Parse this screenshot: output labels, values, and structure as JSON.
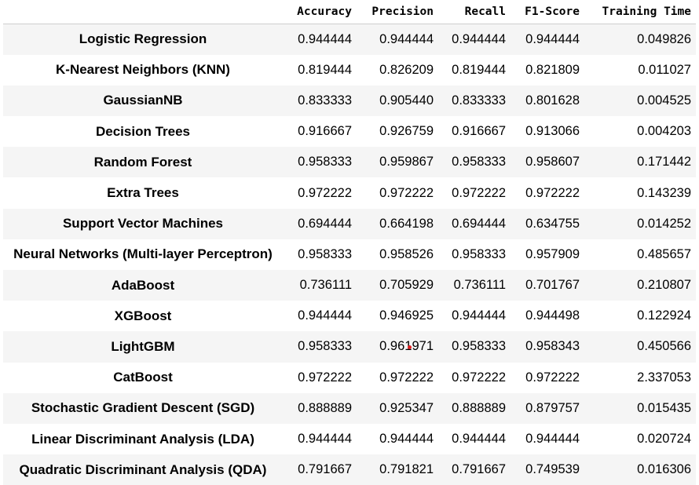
{
  "table": {
    "headers": [
      "",
      "Accuracy",
      "Precision",
      "Recall",
      "F1-Score",
      "Training Time"
    ],
    "rows": [
      {
        "model": "Logistic Regression",
        "accuracy": "0.944444",
        "precision": "0.944444",
        "recall": "0.944444",
        "f1": "0.944444",
        "time": "0.049826"
      },
      {
        "model": "K-Nearest Neighbors (KNN)",
        "accuracy": "0.819444",
        "precision": "0.826209",
        "recall": "0.819444",
        "f1": "0.821809",
        "time": "0.011027"
      },
      {
        "model": "GaussianNB",
        "accuracy": "0.833333",
        "precision": "0.905440",
        "recall": "0.833333",
        "f1": "0.801628",
        "time": "0.004525"
      },
      {
        "model": "Decision Trees",
        "accuracy": "0.916667",
        "precision": "0.926759",
        "recall": "0.916667",
        "f1": "0.913066",
        "time": "0.004203"
      },
      {
        "model": "Random Forest",
        "accuracy": "0.958333",
        "precision": "0.959867",
        "recall": "0.958333",
        "f1": "0.958607",
        "time": "0.171442"
      },
      {
        "model": "Extra Trees",
        "accuracy": "0.972222",
        "precision": "0.972222",
        "recall": "0.972222",
        "f1": "0.972222",
        "time": "0.143239"
      },
      {
        "model": "Support Vector Machines",
        "accuracy": "0.694444",
        "precision": "0.664198",
        "recall": "0.694444",
        "f1": "0.634755",
        "time": "0.014252"
      },
      {
        "model": "Neural Networks (Multi-layer Perceptron)",
        "accuracy": "0.958333",
        "precision": "0.958526",
        "recall": "0.958333",
        "f1": "0.957909",
        "time": "0.485657"
      },
      {
        "model": "AdaBoost",
        "accuracy": "0.736111",
        "precision": "0.705929",
        "recall": "0.736111",
        "f1": "0.701767",
        "time": "0.210807"
      },
      {
        "model": "XGBoost",
        "accuracy": "0.944444",
        "precision": "0.946925",
        "recall": "0.944444",
        "f1": "0.944498",
        "time": "0.122924"
      },
      {
        "model": "LightGBM",
        "accuracy": "0.958333",
        "precision": "0.961971",
        "recall": "0.958333",
        "f1": "0.958343",
        "time": "0.450566"
      },
      {
        "model": "CatBoost",
        "accuracy": "0.972222",
        "precision": "0.972222",
        "recall": "0.972222",
        "f1": "0.972222",
        "time": "2.337053"
      },
      {
        "model": "Stochastic Gradient Descent (SGD)",
        "accuracy": "0.888889",
        "precision": "0.925347",
        "recall": "0.888889",
        "f1": "0.879757",
        "time": "0.015435"
      },
      {
        "model": "Linear Discriminant Analysis (LDA)",
        "accuracy": "0.944444",
        "precision": "0.944444",
        "recall": "0.944444",
        "f1": "0.944444",
        "time": "0.020724"
      },
      {
        "model": "Quadratic Discriminant Analysis (QDA)",
        "accuracy": "0.791667",
        "precision": "0.791821",
        "recall": "0.791667",
        "f1": "0.749539",
        "time": "0.016306"
      }
    ]
  },
  "colors": {
    "stripe": "#f5f5f5",
    "header_rule": "#cfcfcf",
    "cursor_dot": "#e02020"
  }
}
